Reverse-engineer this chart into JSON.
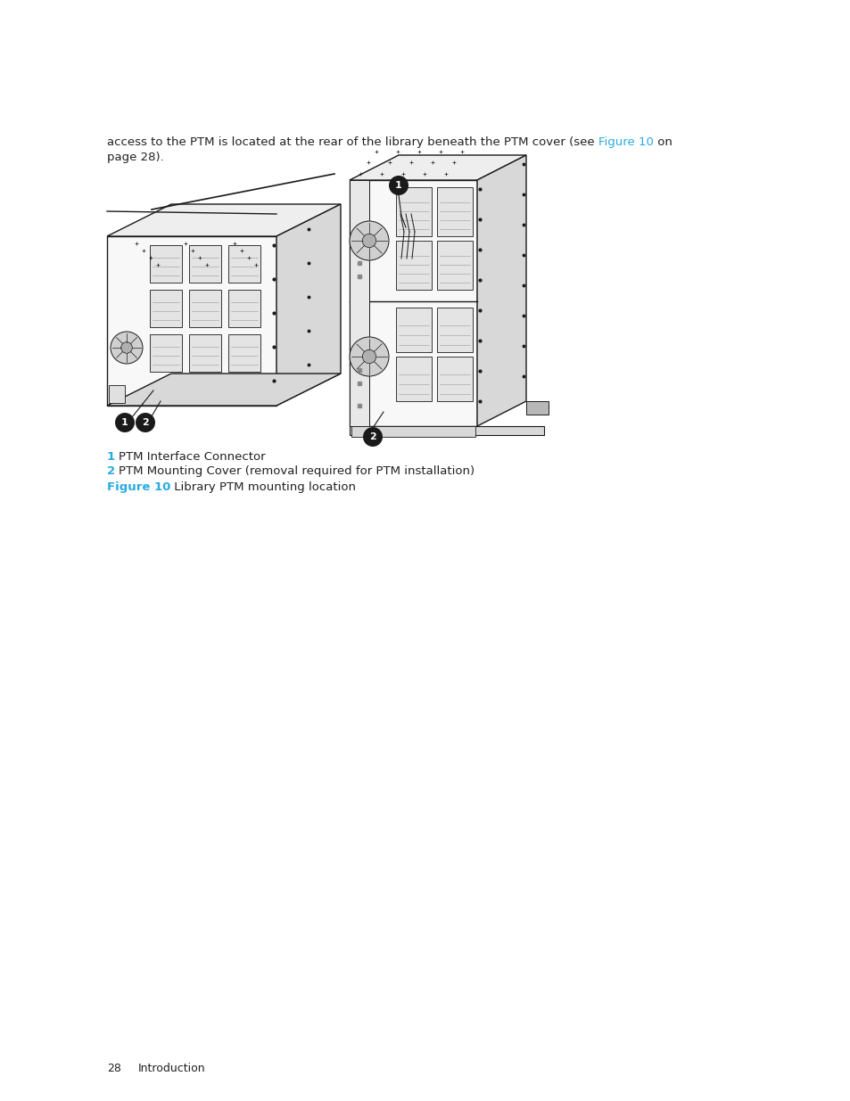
{
  "bg_color": "#ffffff",
  "body_text_before_link": "access to the PTM is located at the rear of the library beneath the PTM cover (see ",
  "body_link_text": "Figure 10",
  "body_text_after_link": " on",
  "body_line2": "page 28).",
  "link_color": "#29abe2",
  "text_color": "#231f20",
  "legend_items": [
    {
      "num": "1",
      "text": "PTM Interface Connector"
    },
    {
      "num": "2",
      "text": "PTM Mounting Cover (removal required for PTM installation)"
    }
  ],
  "figure_label": "Figure 10",
  "figure_caption": " Library PTM mounting location",
  "footer_page": "28",
  "footer_text": "Introduction",
  "body_fontsize": 9.5,
  "legend_fontsize": 9.5,
  "caption_fontsize": 9.5,
  "footer_fontsize": 9.0
}
